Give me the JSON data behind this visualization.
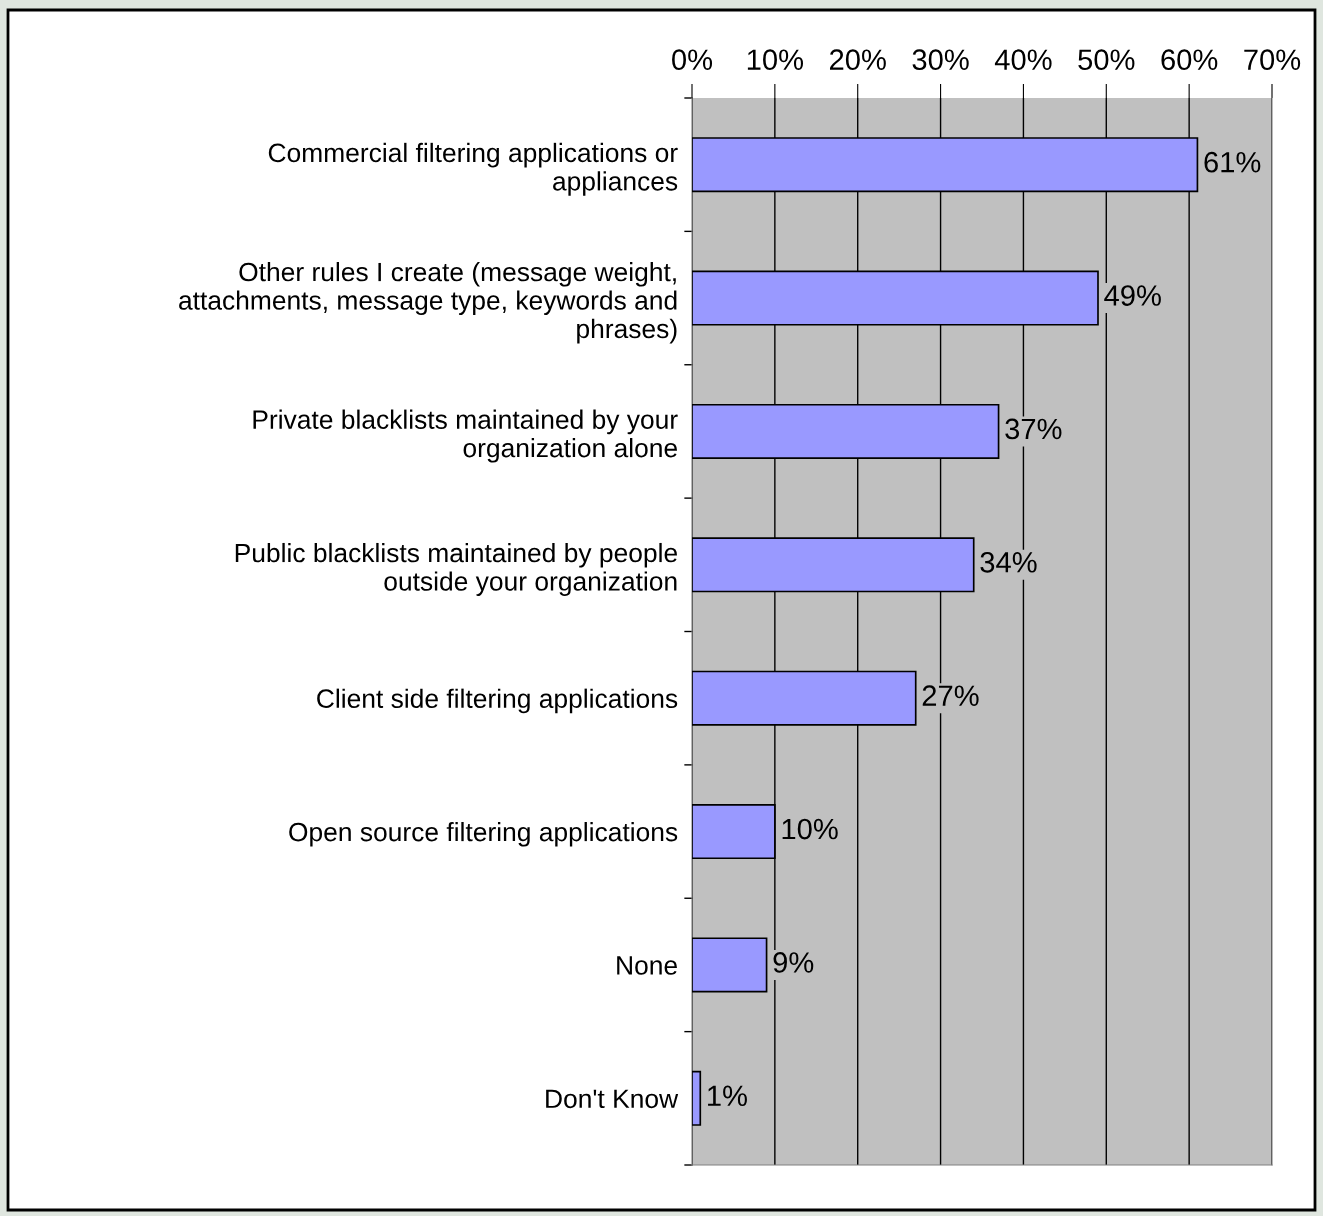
{
  "chart_data": {
    "type": "bar",
    "orientation": "horizontal",
    "categories": [
      "Commercial filtering applications or appliances",
      "Other rules I create (message weight, attachments, message type, keywords and phrases)",
      "Private blacklists maintained by your organization alone",
      "Public blacklists maintained by people outside your organization",
      "Client side filtering applications",
      "Open source filtering applications",
      "None",
      "Don't Know"
    ],
    "values": [
      61,
      49,
      37,
      34,
      27,
      10,
      9,
      1
    ],
    "value_labels": [
      "61%",
      "49%",
      "37%",
      "34%",
      "27%",
      "10%",
      "9%",
      "1%"
    ],
    "color": "#9999ff",
    "xlim": [
      0,
      70
    ],
    "xticks": [
      {
        "value": 0,
        "label": "0%"
      },
      {
        "value": 10,
        "label": "10%"
      },
      {
        "value": 20,
        "label": "20%"
      },
      {
        "value": 30,
        "label": "30%"
      },
      {
        "value": 40,
        "label": "40%"
      },
      {
        "value": 50,
        "label": "50%"
      },
      {
        "value": 60,
        "label": "60%"
      },
      {
        "value": 70,
        "label": "70%"
      }
    ],
    "grid": "x"
  }
}
